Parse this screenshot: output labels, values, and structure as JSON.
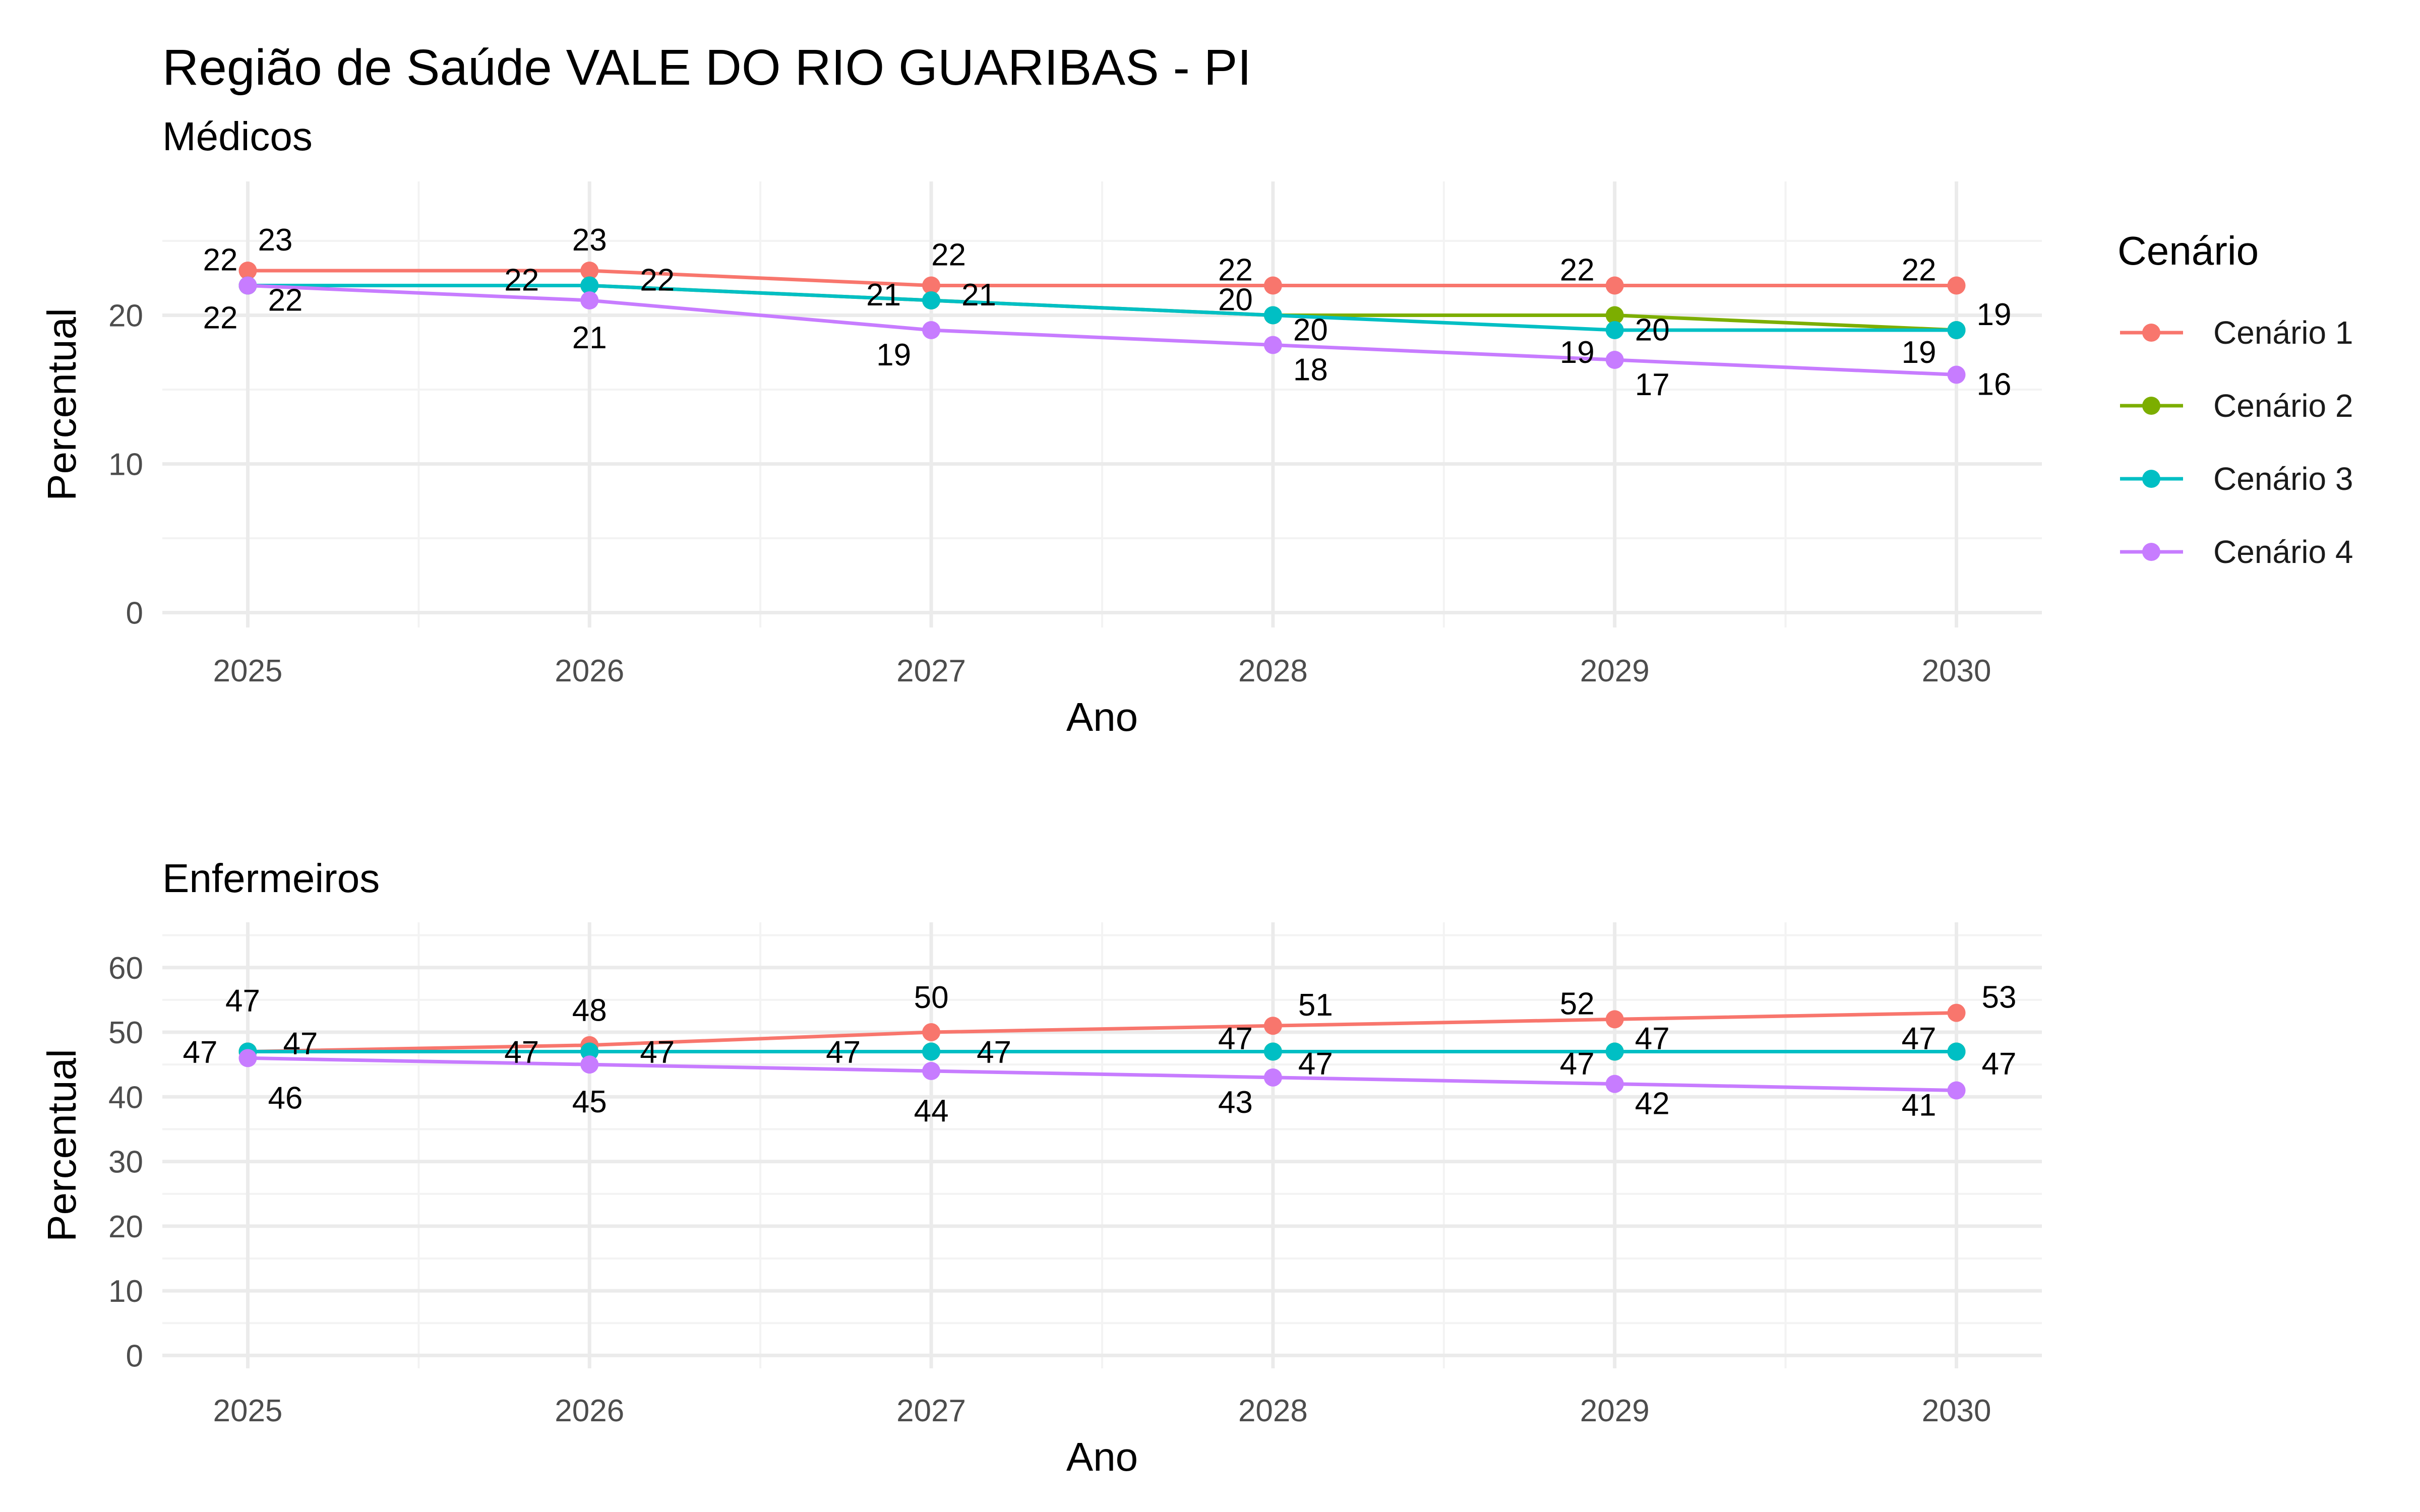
{
  "title": "Região de Saúde VALE DO RIO GUARIBAS - PI",
  "legend": {
    "title": "Cenário",
    "entries": [
      {
        "name": "Cenário 1",
        "color": "#F8766D"
      },
      {
        "name": "Cenário 2",
        "color": "#7CAE00"
      },
      {
        "name": "Cenário 3",
        "color": "#00BFC4"
      },
      {
        "name": "Cenário 4",
        "color": "#C77CFF"
      }
    ]
  },
  "chart_data": [
    {
      "type": "line",
      "subtitle": "Médicos",
      "xlabel": "Ano",
      "ylabel": "Percentual",
      "x": [
        2025,
        2026,
        2027,
        2028,
        2029,
        2030
      ],
      "ylim": [
        -1,
        29
      ],
      "yticks": [
        0,
        10,
        20
      ],
      "grid": true,
      "series": [
        {
          "name": "Cenário 1",
          "values": [
            23,
            23,
            22,
            22,
            22,
            22
          ]
        },
        {
          "name": "Cenário 2",
          "values": [
            22,
            22,
            21,
            20,
            20,
            19
          ]
        },
        {
          "name": "Cenário 3",
          "values": [
            22,
            22,
            21,
            20,
            19,
            19
          ]
        },
        {
          "name": "Cenário 4",
          "values": [
            22,
            21,
            19,
            18,
            17,
            16
          ]
        }
      ]
    },
    {
      "type": "line",
      "subtitle": "Enfermeiros",
      "xlabel": "Ano",
      "ylabel": "Percentual",
      "x": [
        2025,
        2026,
        2027,
        2028,
        2029,
        2030
      ],
      "ylim": [
        -2,
        67
      ],
      "yticks": [
        0,
        10,
        20,
        30,
        40,
        50,
        60
      ],
      "grid": true,
      "series": [
        {
          "name": "Cenário 1",
          "values": [
            47,
            48,
            50,
            51,
            52,
            53
          ]
        },
        {
          "name": "Cenário 2",
          "values": [
            47,
            47,
            47,
            47,
            47,
            47
          ]
        },
        {
          "name": "Cenário 3",
          "values": [
            47,
            47,
            47,
            47,
            47,
            47
          ]
        },
        {
          "name": "Cenário 4",
          "values": [
            46,
            45,
            44,
            43,
            42,
            41
          ]
        }
      ]
    }
  ]
}
